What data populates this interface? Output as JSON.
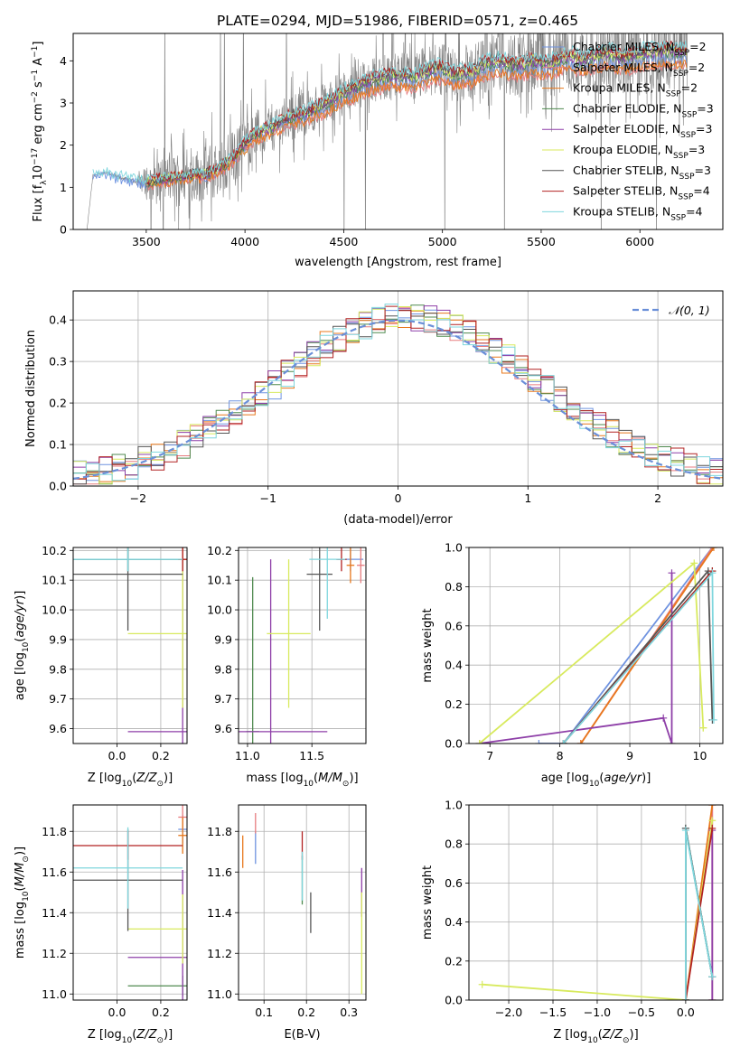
{
  "figure": {
    "title": "PLATE=0294, MJD=51986, FIBERID=0571, z=0.465"
  },
  "models": [
    {
      "label": "Chabrier MILES, N_SSP=2",
      "base": "Chabrier MILES, N",
      "sub": "SSP",
      "tail": "=2",
      "color": "#6f93e0"
    },
    {
      "label": "Salpeter MILES, N_SSP=2",
      "base": "Salpeter MILES, N",
      "sub": "SSP",
      "tail": "=2",
      "color": "#e77b7f"
    },
    {
      "label": "Kroupa MILES, N_SSP=2",
      "base": "Kroupa MILES, N",
      "sub": "SSP",
      "tail": "=2",
      "color": "#e8781c"
    },
    {
      "label": "Chabrier ELODIE, N_SSP=3",
      "base": "Chabrier ELODIE, N",
      "sub": "SSP",
      "tail": "=3",
      "color": "#4f8a4f"
    },
    {
      "label": "Salpeter ELODIE, N_SSP=3",
      "base": "Salpeter ELODIE, N",
      "sub": "SSP",
      "tail": "=3",
      "color": "#8e3fa8"
    },
    {
      "label": "Kroupa ELODIE, N_SSP=3",
      "base": "Kroupa ELODIE, N",
      "sub": "SSP",
      "tail": "=3",
      "color": "#d8ea5e"
    },
    {
      "label": "Chabrier STELIB, N_SSP=3",
      "base": "Chabrier STELIB, N",
      "sub": "SSP",
      "tail": "=3",
      "color": "#555555"
    },
    {
      "label": "Salpeter STELIB, N_SSP=4",
      "base": "Salpeter STELIB, N",
      "sub": "SSP",
      "tail": "=4",
      "color": "#b22222"
    },
    {
      "label": "Kroupa STELIB, N_SSP=4",
      "base": "Kroupa STELIB, N",
      "sub": "SSP",
      "tail": "=4",
      "color": "#7fd6dd"
    }
  ],
  "chart_data": [
    {
      "id": "spectrum",
      "type": "line",
      "xlabel": "wavelength [Angstrom, rest frame]",
      "ylabel": "Flux [f_λ 10^-17 erg cm^-2 s^-1 A^-1]",
      "xlim": [
        3130,
        6420
      ],
      "ylim": [
        0,
        4.65
      ],
      "xticks": [
        3500,
        4000,
        4500,
        5000,
        5500,
        6000
      ],
      "yticks": [
        0,
        1,
        2,
        3,
        4
      ],
      "legend": "upper right",
      "data_color": "#808080",
      "data_envelope": {
        "x": [
          3200,
          3230,
          3300,
          3350,
          3400,
          3450,
          3500,
          3550,
          3600,
          3650,
          3700,
          3750,
          3800,
          3850,
          3900,
          3950,
          4000,
          4050,
          4100,
          4150,
          4200,
          4250,
          4300,
          4350,
          4400,
          4450,
          4500,
          4550,
          4600,
          4650,
          4700,
          4750,
          4800,
          4850,
          4900,
          4950,
          5000,
          5050,
          5100,
          5150,
          5200,
          5250,
          5300,
          5350,
          5400,
          5450,
          5500,
          5550,
          5600,
          5650,
          5700,
          5750,
          5800,
          5850,
          5900,
          5950,
          6000,
          6050,
          6100,
          6150,
          6200,
          6240
        ],
        "y": [
          0.0,
          1.28,
          1.35,
          1.25,
          1.2,
          1.15,
          1.12,
          1.18,
          1.2,
          1.25,
          1.28,
          1.3,
          1.3,
          1.4,
          1.55,
          1.75,
          2.05,
          2.25,
          2.35,
          2.45,
          2.6,
          2.7,
          2.75,
          2.85,
          2.95,
          3.1,
          3.25,
          3.35,
          3.45,
          3.55,
          3.6,
          3.65,
          3.62,
          3.6,
          3.7,
          3.78,
          3.82,
          3.65,
          3.7,
          3.72,
          3.88,
          3.95,
          3.98,
          3.9,
          3.9,
          3.98,
          3.95,
          3.92,
          4.05,
          4.1,
          4.0,
          4.08,
          4.12,
          4.18,
          4.05,
          4.1,
          4.15,
          4.2,
          4.18,
          4.25,
          4.2,
          4.2
        ],
        "noise": [
          0,
          0.05,
          0.05,
          0.05,
          0.05,
          0.05,
          0.6,
          0.7,
          0.8,
          0.85,
          0.9,
          0.9,
          1.0,
          1.0,
          1.0,
          0.9,
          0.9,
          0.85,
          0.8,
          0.8,
          0.8,
          0.8,
          0.75,
          0.75,
          0.75,
          0.75,
          0.75,
          0.75,
          0.75,
          0.8,
          0.8,
          0.85,
          0.85,
          0.9,
          0.9,
          0.9,
          0.9,
          0.95,
          0.95,
          1.0,
          1.0,
          1.0,
          1.1,
          1.1,
          1.1,
          1.1,
          1.2,
          1.2,
          1.2,
          1.2,
          1.2,
          1.2,
          1.3,
          1.3,
          1.3,
          1.3,
          1.4,
          1.4,
          1.4,
          1.4,
          1.4,
          1.4
        ]
      }
    },
    {
      "id": "residuals",
      "type": "histogram",
      "xlabel": "(data-model)/error",
      "ylabel": "Normed distribution",
      "xlim": [
        -2.5,
        2.5
      ],
      "ylim": [
        0,
        0.47
      ],
      "xticks": [
        -2,
        -1,
        0,
        1,
        2
      ],
      "yticks": [
        0.0,
        0.1,
        0.2,
        0.3,
        0.4
      ],
      "grid": true,
      "legend": "upper right",
      "reference": {
        "label": "𝒩(0, 1)",
        "color": "#6a8fd8",
        "style": "dashed"
      },
      "bin_width": 0.1
    },
    {
      "id": "age_vs_Z",
      "type": "errorbar",
      "xlabel": "Z [log10(Z/Z⊙)]",
      "ylabel": "age [log10(age/yr)]",
      "xlim": [
        -0.2,
        0.32
      ],
      "ylim": [
        9.55,
        10.21
      ],
      "xticks": [
        0.0,
        0.2
      ],
      "yticks": [
        9.6,
        9.7,
        9.8,
        9.9,
        10.0,
        10.1,
        10.2
      ],
      "points": [
        {
          "model": 0,
          "x": 0.05,
          "y": 10.17,
          "xerr": 0.25,
          "yerr": 0.04
        },
        {
          "model": 1,
          "x": 0.3,
          "y": 10.17,
          "xerr": 0.02,
          "yerr": 0.04
        },
        {
          "model": 2,
          "x": 0.3,
          "y": 10.17,
          "xerr": 0.02,
          "yerr": 0.04
        },
        {
          "model": 3,
          "x": 0.05,
          "y": 10.17,
          "xerr": 0.25,
          "yerr": 0.04
        },
        {
          "model": 4,
          "x": 0.3,
          "y": 9.59,
          "xerr": 0.25,
          "yerr": 0.58
        },
        {
          "model": 5,
          "x": 0.3,
          "y": 9.92,
          "xerr": 0.25,
          "yerr": 0.25
        },
        {
          "model": 6,
          "x": 0.05,
          "y": 10.12,
          "xerr": 0.25,
          "yerr": 0.19
        },
        {
          "model": 7,
          "x": 0.3,
          "y": 10.17,
          "xerr": 0.02,
          "yerr": 0.04
        },
        {
          "model": 8,
          "x": 0.05,
          "y": 10.17,
          "xerr": 0.25,
          "yerr": 0.04
        }
      ]
    },
    {
      "id": "age_vs_mass",
      "type": "errorbar",
      "xlabel": "mass [log10(M/M⊙)]",
      "ylabel": "",
      "xlim": [
        10.93,
        11.92
      ],
      "ylim": [
        9.55,
        10.21
      ],
      "xticks": [
        11.0,
        11.5
      ],
      "yticks": [
        9.6,
        9.7,
        9.8,
        9.9,
        10.0,
        10.1,
        10.2
      ],
      "points": [
        {
          "model": 0,
          "x": 11.8,
          "y": 10.17,
          "xerr": 0.1,
          "yerr": 0.04
        },
        {
          "model": 1,
          "x": 11.88,
          "y": 10.15,
          "xerr": 0.03,
          "yerr": 0.06
        },
        {
          "model": 2,
          "x": 11.8,
          "y": 10.15,
          "xerr": 0.03,
          "yerr": 0.06
        },
        {
          "model": 3,
          "x": 11.04,
          "y": 9.59,
          "xerr": 0.05,
          "yerr": 0.52
        },
        {
          "model": 4,
          "x": 11.18,
          "y": 9.59,
          "xerr": 0.44,
          "yerr": 0.58
        },
        {
          "model": 5,
          "x": 11.32,
          "y": 9.92,
          "xerr": 0.17,
          "yerr": 0.25
        },
        {
          "model": 6,
          "x": 11.56,
          "y": 10.12,
          "xerr": 0.1,
          "yerr": 0.19
        },
        {
          "model": 7,
          "x": 11.73,
          "y": 10.17,
          "xerr": 0.04,
          "yerr": 0.04
        },
        {
          "model": 8,
          "x": 11.62,
          "y": 10.17,
          "xerr": 0.14,
          "yerr": 0.2
        }
      ]
    },
    {
      "id": "weight_vs_age",
      "type": "line",
      "xlabel": "age [log10(age/yr)]",
      "ylabel": "mass weight",
      "xlim": [
        6.7,
        10.33
      ],
      "ylim": [
        0,
        1.0
      ],
      "xticks": [
        7,
        8,
        9,
        10
      ],
      "yticks": [
        0.0,
        0.2,
        0.4,
        0.6,
        0.8,
        1.0
      ],
      "grid": true,
      "series": [
        {
          "model": 0,
          "x": [
            7.7,
            8.05,
            10.18
          ],
          "y": [
            0.0,
            0.0,
            1.0
          ]
        },
        {
          "model": 1,
          "x": [
            8.3,
            10.18
          ],
          "y": [
            0.0,
            1.0
          ]
        },
        {
          "model": 2,
          "x": [
            8.3,
            10.2
          ],
          "y": [
            0.0,
            1.0
          ]
        },
        {
          "model": 3,
          "x": [
            8.05,
            10.18
          ],
          "y": [
            0.0,
            0.88
          ]
        },
        {
          "model": 4,
          "x": [
            6.85,
            9.48,
            9.6,
            9.6
          ],
          "y": [
            0.0,
            0.13,
            0.0,
            0.87
          ]
        },
        {
          "model": 5,
          "x": [
            6.85,
            9.92,
            10.05,
            10.05
          ],
          "y": [
            0.0,
            0.92,
            0.08,
            0.08
          ]
        },
        {
          "model": 6,
          "x": [
            8.05,
            10.12,
            10.18
          ],
          "y": [
            0.0,
            0.88,
            0.12
          ]
        },
        {
          "model": 7,
          "x": [
            8.05,
            10.18
          ],
          "y": [
            0.0,
            0.88
          ]
        },
        {
          "model": 8,
          "x": [
            8.05,
            10.18,
            10.2
          ],
          "y": [
            0.0,
            0.87,
            0.12
          ]
        }
      ]
    },
    {
      "id": "mass_vs_Z",
      "type": "errorbar",
      "xlabel": "Z [log10(Z/Z⊙)]",
      "ylabel": "mass [log10(M/M⊙)]",
      "xlim": [
        -0.2,
        0.32
      ],
      "ylim": [
        10.97,
        11.93
      ],
      "xticks": [
        0.0,
        0.2
      ],
      "yticks": [
        11.0,
        11.2,
        11.4,
        11.6,
        11.8
      ],
      "points": [
        {
          "model": 0,
          "x": 0.3,
          "y": 11.81,
          "xerr": 0.02,
          "yerr": 0.07
        },
        {
          "model": 1,
          "x": 0.3,
          "y": 11.87,
          "xerr": 0.02,
          "yerr": 0.06
        },
        {
          "model": 2,
          "x": 0.3,
          "y": 11.78,
          "xerr": 0.02,
          "yerr": 0.09
        },
        {
          "model": 3,
          "x": 0.3,
          "y": 11.04,
          "xerr": 0.25,
          "yerr": 0.05
        },
        {
          "model": 4,
          "x": 0.3,
          "y": 11.18,
          "xerr": 0.25,
          "yerr": 0.43
        },
        {
          "model": 5,
          "x": 0.3,
          "y": 11.32,
          "xerr": 0.25,
          "yerr": 0.17
        },
        {
          "model": 6,
          "x": 0.05,
          "y": 11.56,
          "xerr": 0.25,
          "yerr": 0.25
        },
        {
          "model": 7,
          "x": 0.05,
          "y": 11.73,
          "xerr": 0.25,
          "yerr": 0.07
        },
        {
          "model": 8,
          "x": 0.05,
          "y": 11.62,
          "xerr": 0.25,
          "yerr": 0.2
        }
      ]
    },
    {
      "id": "mass_vs_EBV",
      "type": "errorbar",
      "xlabel": "E(B-V)",
      "ylabel": "",
      "xlim": [
        0.04,
        0.34
      ],
      "ylim": [
        10.97,
        11.93
      ],
      "xticks": [
        0.1,
        0.2,
        0.3
      ],
      "yticks": [
        11.0,
        11.2,
        11.4,
        11.6,
        11.8
      ],
      "points": [
        {
          "model": 0,
          "x": 0.08,
          "y": 11.72,
          "xerr": 0,
          "yerr": 0.08
        },
        {
          "model": 1,
          "x": 0.08,
          "y": 11.84,
          "xerr": 0,
          "yerr": 0.05
        },
        {
          "model": 2,
          "x": 0.05,
          "y": 11.7,
          "xerr": 0,
          "yerr": 0.08
        },
        {
          "model": 3,
          "x": 0.19,
          "y": 11.56,
          "xerr": 0,
          "yerr": 0.12
        },
        {
          "model": 4,
          "x": 0.33,
          "y": 11.5,
          "xerr": 0,
          "yerr": 0.12
        },
        {
          "model": 5,
          "x": 0.33,
          "y": 11.25,
          "xerr": 0,
          "yerr": 0.25
        },
        {
          "model": 6,
          "x": 0.21,
          "y": 11.4,
          "xerr": 0,
          "yerr": 0.1
        },
        {
          "model": 7,
          "x": 0.19,
          "y": 11.73,
          "xerr": 0,
          "yerr": 0.07
        },
        {
          "model": 8,
          "x": 0.19,
          "y": 11.58,
          "xerr": 0,
          "yerr": 0.12
        }
      ]
    },
    {
      "id": "weight_vs_Z",
      "type": "line",
      "xlabel": "Z [log10(Z/Z⊙)]",
      "ylabel": "mass weight",
      "xlim": [
        -2.45,
        0.42
      ],
      "ylim": [
        0,
        1.0
      ],
      "xticks": [
        -2.0,
        -1.5,
        -1.0,
        -0.5,
        0.0
      ],
      "yticks": [
        0.0,
        0.2,
        0.4,
        0.6,
        0.8,
        1.0
      ],
      "grid": true,
      "series": [
        {
          "model": 0,
          "x": [
            0.0,
            0.0,
            0.3
          ],
          "y": [
            0.0,
            0.88,
            0.12
          ]
        },
        {
          "model": 1,
          "x": [
            0.3,
            0.3
          ],
          "y": [
            0.0,
            1.0
          ]
        },
        {
          "model": 2,
          "x": [
            0.0,
            0.3
          ],
          "y": [
            0.0,
            1.0
          ]
        },
        {
          "model": 3,
          "x": [
            0.0,
            0.0,
            0.3
          ],
          "y": [
            0.0,
            0.88,
            0.12
          ]
        },
        {
          "model": 4,
          "x": [
            0.3,
            0.3
          ],
          "y": [
            0.0,
            0.87
          ]
        },
        {
          "model": 5,
          "x": [
            -2.3,
            0.0,
            0.3
          ],
          "y": [
            0.08,
            0.0,
            0.92
          ]
        },
        {
          "model": 6,
          "x": [
            0.0,
            0.0,
            0.3
          ],
          "y": [
            0.0,
            0.88,
            0.12
          ]
        },
        {
          "model": 7,
          "x": [
            0.0,
            0.3
          ],
          "y": [
            0.0,
            0.88
          ]
        },
        {
          "model": 8,
          "x": [
            0.0,
            0.0,
            0.3
          ],
          "y": [
            0.0,
            0.87,
            0.12
          ]
        }
      ]
    }
  ]
}
